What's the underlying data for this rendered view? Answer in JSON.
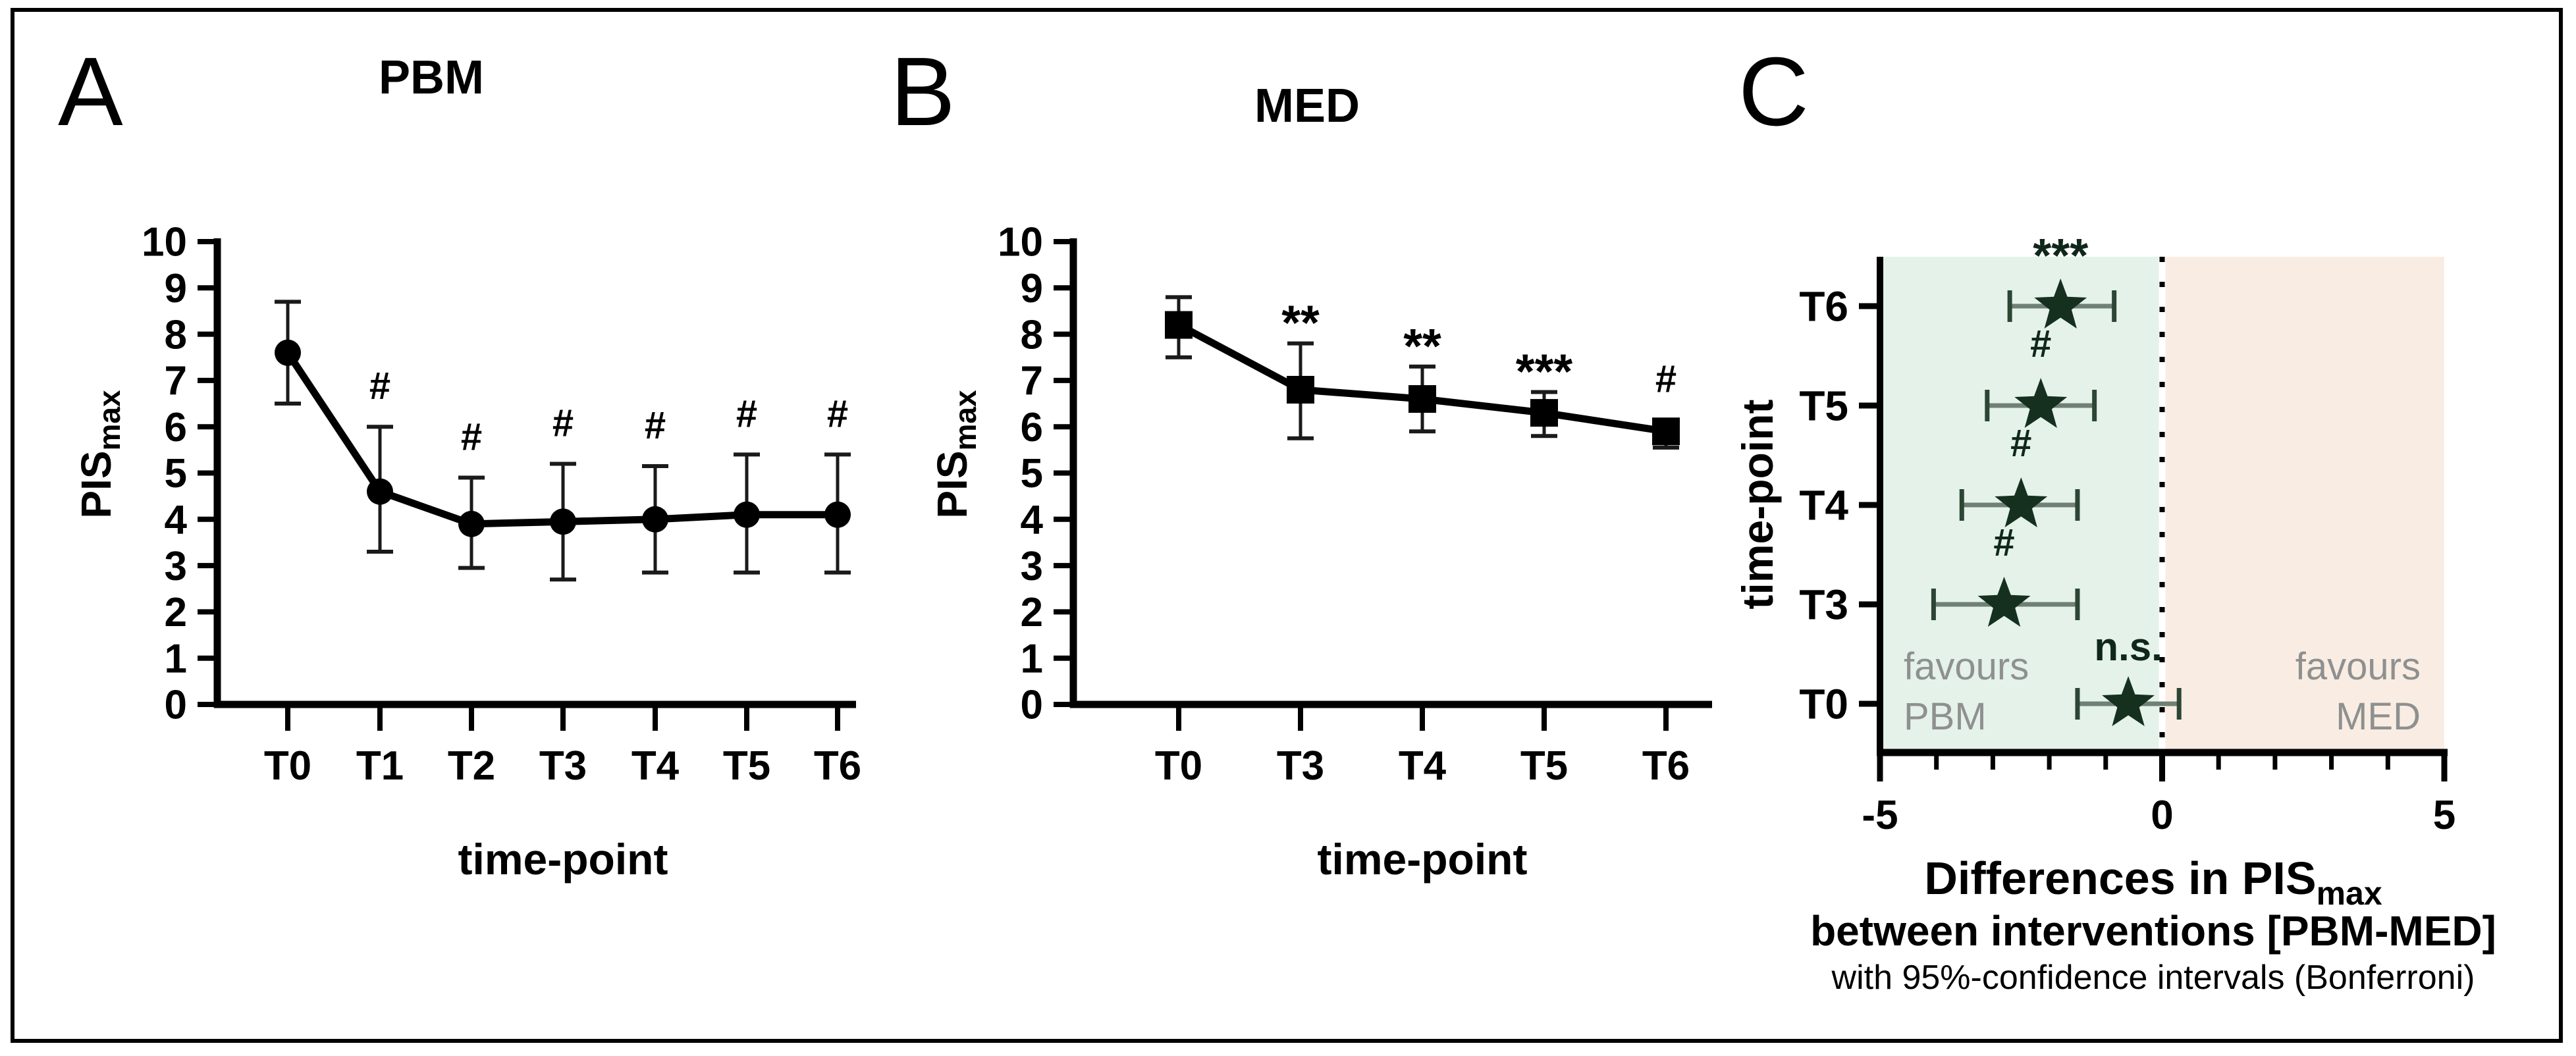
{
  "figure": {
    "panel_labels": [
      "A",
      "B",
      "C"
    ],
    "background": "#ffffff",
    "border_color": "#000000"
  },
  "chart_data": [
    {
      "id": "pbm",
      "type": "line",
      "panel_label": "A",
      "title": "PBM",
      "xlabel": "time-point",
      "ylabel": "PIS",
      "ylabel_sub": "max",
      "ylim": [
        0,
        10
      ],
      "yticks": [
        0,
        1,
        2,
        3,
        4,
        5,
        6,
        7,
        8,
        9,
        10
      ],
      "categories": [
        "T0",
        "T1",
        "T2",
        "T3",
        "T4",
        "T5",
        "T6"
      ],
      "values": [
        7.6,
        4.6,
        3.9,
        3.95,
        4.0,
        4.1,
        4.1
      ],
      "err_upper": [
        8.7,
        6.0,
        4.9,
        5.2,
        5.15,
        5.4,
        5.4
      ],
      "err_lower": [
        6.5,
        3.3,
        2.95,
        2.7,
        2.85,
        2.85,
        2.85
      ],
      "annotations": [
        "",
        "#",
        "#",
        "#",
        "#",
        "#",
        "#"
      ],
      "marker": "circle",
      "line_color": "#000000",
      "legend": "none",
      "grid": "off"
    },
    {
      "id": "med",
      "type": "line",
      "panel_label": "B",
      "title": "MED",
      "xlabel": "time-point",
      "ylabel": "PIS",
      "ylabel_sub": "max",
      "ylim": [
        0,
        10
      ],
      "yticks": [
        0,
        1,
        2,
        3,
        4,
        5,
        6,
        7,
        8,
        9,
        10
      ],
      "categories": [
        "T0",
        "T3",
        "T4",
        "T5",
        "T6"
      ],
      "values": [
        8.2,
        6.8,
        6.6,
        6.3,
        5.9
      ],
      "err_upper": [
        8.8,
        7.8,
        7.3,
        6.75,
        6.15
      ],
      "err_lower": [
        7.5,
        5.75,
        5.9,
        5.8,
        5.55
      ],
      "annotations": [
        "",
        "**",
        "**",
        "***",
        "#"
      ],
      "marker": "square",
      "line_color": "#000000",
      "legend": "none",
      "grid": "off"
    },
    {
      "id": "diff",
      "type": "forest",
      "panel_label": "C",
      "ylabel": "time-point",
      "categories": [
        "T6",
        "T5",
        "T4",
        "T3",
        "T0"
      ],
      "values": [
        -1.8,
        -2.15,
        -2.5,
        -2.8,
        -0.6
      ],
      "ci_low": [
        -2.7,
        -3.1,
        -3.55,
        -4.05,
        -1.5
      ],
      "ci_high": [
        -0.85,
        -1.2,
        -1.5,
        -1.5,
        0.3
      ],
      "annotations": [
        "***",
        "#",
        "#",
        "#",
        "n.s."
      ],
      "xlim": [
        -5,
        5
      ],
      "xticks": [
        -5,
        0,
        5
      ],
      "zero_line": 0,
      "xlabel_line1": "Differences in PIS",
      "xlabel_line1_sub": "max",
      "xlabel_line2": "between interventions [PBM-MED]",
      "xlabel_line3": "with 95%-confidence intervals (Bonferroni)",
      "left_zone": {
        "label_line1": "favours",
        "label_line2": "PBM",
        "color": "#e4f2ea"
      },
      "right_zone": {
        "label_line1": "favours",
        "label_line2": "MED",
        "color": "#f9ede3"
      },
      "zone_label_color": "#8f9090",
      "marker": "star",
      "marker_color": "#15301f",
      "ci_line_color": "#6f8074",
      "ci_cap_color": "#2c4534",
      "grid": "off",
      "legend": "none"
    }
  ]
}
